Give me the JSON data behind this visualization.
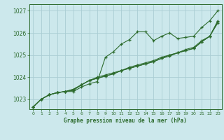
{
  "title": "Graphe pression niveau de la mer (hPa)",
  "bg_color": "#cce8ec",
  "grid_color": "#aacdd4",
  "line_color": "#2d6b2d",
  "ylim": [
    1022.55,
    1027.3
  ],
  "xlim": [
    -0.5,
    23.5
  ],
  "yticks": [
    1023,
    1024,
    1025,
    1026,
    1027
  ],
  "xticks": [
    0,
    1,
    2,
    3,
    4,
    5,
    6,
    7,
    8,
    9,
    10,
    11,
    12,
    13,
    14,
    15,
    16,
    17,
    18,
    19,
    20,
    21,
    22,
    23
  ],
  "series": [
    [
      1022.65,
      1023.0,
      1023.2,
      1023.3,
      1023.35,
      1023.35,
      1023.55,
      1023.7,
      1023.8,
      1024.9,
      1025.15,
      1025.5,
      1025.7,
      1026.05,
      1026.05,
      1025.65,
      1025.85,
      1026.0,
      1025.75,
      1025.8,
      1025.85,
      1026.25,
      1026.55,
      1027.0
    ],
    [
      1022.65,
      1023.0,
      1023.2,
      1023.3,
      1023.35,
      1023.4,
      1023.65,
      1023.85,
      1023.95,
      1024.05,
      1024.15,
      1024.3,
      1024.45,
      1024.55,
      1024.65,
      1024.75,
      1024.9,
      1025.0,
      1025.1,
      1025.25,
      1025.35,
      1025.65,
      1025.85,
      1026.5
    ],
    [
      1022.65,
      1023.0,
      1023.2,
      1023.3,
      1023.35,
      1023.45,
      1023.65,
      1023.85,
      1023.95,
      1024.05,
      1024.15,
      1024.3,
      1024.4,
      1024.5,
      1024.6,
      1024.7,
      1024.85,
      1024.95,
      1025.1,
      1025.2,
      1025.3,
      1025.6,
      1025.85,
      1026.45
    ],
    [
      1022.65,
      1023.0,
      1023.2,
      1023.3,
      1023.35,
      1023.45,
      1023.65,
      1023.85,
      1024.0,
      1024.1,
      1024.2,
      1024.3,
      1024.4,
      1024.5,
      1024.6,
      1024.7,
      1024.85,
      1025.0,
      1025.1,
      1025.2,
      1025.3,
      1025.6,
      1025.85,
      1026.55
    ]
  ]
}
